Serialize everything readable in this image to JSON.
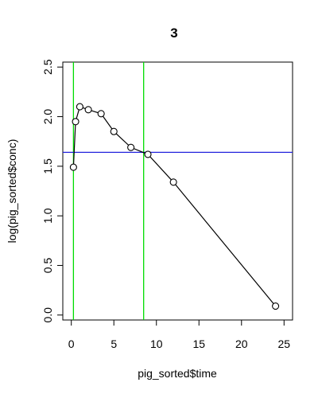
{
  "chart_data": {
    "type": "line",
    "title": "3",
    "x_label": "pig_sorted$time",
    "y_label": "log(pig_sorted$conc)",
    "x": [
      0.25,
      0.5,
      1,
      2,
      3.5,
      5,
      7,
      9,
      12,
      24
    ],
    "series": [
      {
        "color": "#000000",
        "values": [
          1.49,
          1.95,
          2.1,
          2.07,
          2.03,
          1.85,
          1.69,
          1.62,
          1.34,
          0.09
        ]
      }
    ],
    "xlim": [
      -1.0,
      26.0
    ],
    "ylim": [
      -0.05,
      2.55
    ],
    "xticks": [
      0,
      5,
      10,
      15,
      20,
      25
    ],
    "yticks": [
      {
        "value": 0,
        "label": "0.0"
      },
      {
        "value": 0.5,
        "label": "0.5"
      },
      {
        "value": 1,
        "label": "1.0"
      },
      {
        "value": 1.5,
        "label": "1.5"
      },
      {
        "value": 2,
        "label": "2.0"
      },
      {
        "value": 2.5,
        "label": "2.5"
      }
    ],
    "vlines": {
      "color": "#00dd00",
      "values": [
        0.25,
        8.5
      ]
    },
    "hline": {
      "color": "#2222dd",
      "value": 1.64
    }
  }
}
